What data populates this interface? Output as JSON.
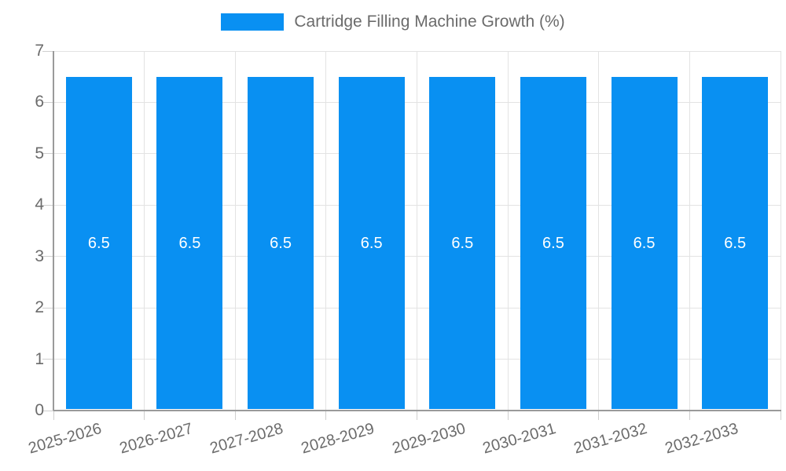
{
  "chart_data": {
    "type": "bar",
    "title": "",
    "legend": {
      "label": "Cartridge Filling Machine Growth (%)",
      "position": "top"
    },
    "categories": [
      "2025-2026",
      "2026-2027",
      "2027-2028",
      "2028-2029",
      "2029-2030",
      "2030-2031",
      "2031-2032",
      "2032-2033"
    ],
    "values": [
      6.5,
      6.5,
      6.5,
      6.5,
      6.5,
      6.5,
      6.5,
      6.5
    ],
    "bar_value_labels": [
      "6.5",
      "6.5",
      "6.5",
      "6.5",
      "6.5",
      "6.5",
      "6.5",
      "6.5"
    ],
    "xlabel": "",
    "ylabel": "",
    "ylim": [
      0,
      7
    ],
    "ytick_step": 1,
    "ytick_labels": [
      "0",
      "1",
      "2",
      "3",
      "4",
      "5",
      "6",
      "7"
    ],
    "grid": true,
    "colors": {
      "bar": "#0990f2",
      "bar_value_text": "#ffffff",
      "axis_text": "#6b6b6b",
      "gridline": "#e3e3e3",
      "axis_line": "#9a9a9a",
      "tick": "#cfcfcf",
      "background": "#ffffff"
    }
  }
}
